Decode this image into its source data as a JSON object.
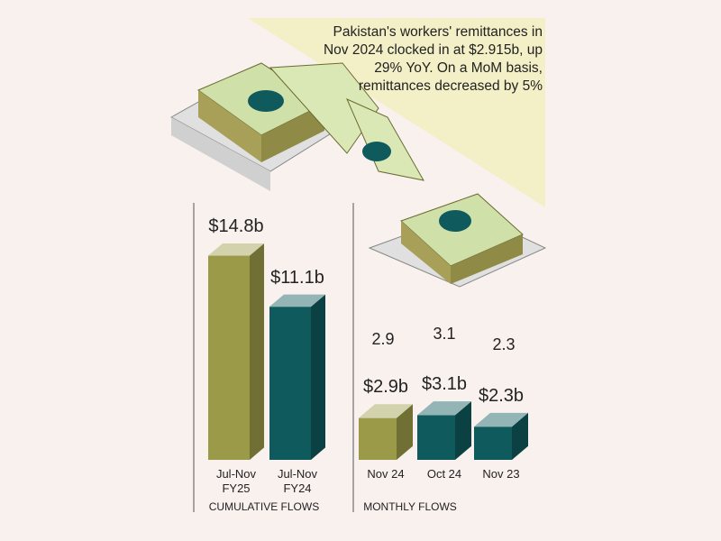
{
  "annotation": "Pakistan's workers' remittances in Nov 2024 clocked in at $2.915b, up 29% YoY. On a MoM basis, remittances decreased by 5%",
  "chart_data": [
    {
      "type": "bar",
      "xlabel": "CUMULATIVE FLOWS",
      "categories": [
        "Jul-Nov FY25",
        "Jul-Nov FY24"
      ],
      "values": [
        14.8,
        11.1
      ],
      "value_labels": [
        "$14.8b",
        "$11.1b"
      ],
      "colors": [
        "#9b9a48",
        "#0f5a5c"
      ]
    },
    {
      "type": "bar",
      "xlabel": "MONTHLY FLOWS",
      "categories": [
        "Nov 24",
        "Oct 24",
        "Nov 23"
      ],
      "values": [
        2.9,
        3.1,
        2.3
      ],
      "value_labels": [
        "$2.9b",
        "$3.1b",
        "$2.3b"
      ],
      "colors": [
        "#9b9a48",
        "#0f5a5c",
        "#0f5a5c"
      ]
    }
  ]
}
